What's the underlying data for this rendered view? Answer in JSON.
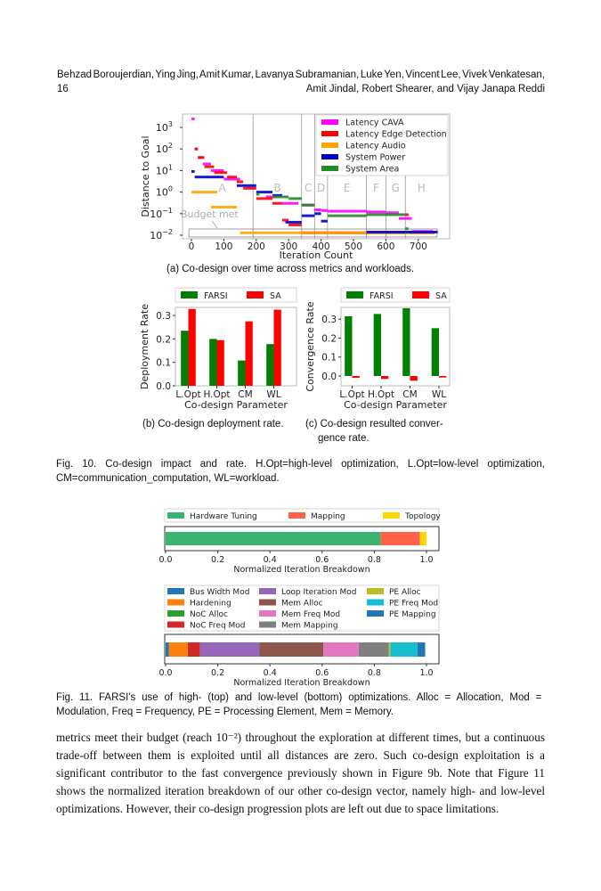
{
  "header": {
    "line1": "Behzad Boroujerdian, Ying Jing, Amit Kumar, Lavanya Subramanian, Luke Yen, Vincent Lee, Vivek Venkatesan,",
    "page_number": "16",
    "line2": "Amit Jindal, Robert Shearer, and Vijay Janapa Reddi"
  },
  "captions": {
    "a": "(a) Co-design over time across metrics and workloads.",
    "b": "(b) Co-design deployment rate.",
    "c_line1": "(c)  Co-design  resulted  conver-",
    "c_line2": "gence rate.",
    "fig10_line1": "Fig. 10. Co-design impact and rate. H.Opt=high-level optimization, L.Opt=low-level optimization,",
    "fig10_line2": "CM=communication_computation, WL=workload.",
    "fig11_line1": "Fig. 11.  FARSI's use of high- (top) and low-level (bottom) optimizations. Alloc = Allocation, Mod =",
    "fig11_line2": "Modulation, Freq = Frequency, PE = Processing Element, Mem = Memory."
  },
  "body": [
    "metrics meet their budget (reach 10⁻²) throughout the exploration at different times, but a continuous",
    "trade-off between them is exploited until all distances are zero. Such co-design exploitation is a",
    "significant contributor to the fast convergence previously shown in Figure 9b. Note that Figure 11",
    "shows the normalized iteration breakdown of our other co-design vector, namely high- and low-level",
    "optimizations. However, their co-design progression plots are left out due to space limitations."
  ],
  "chart_data": [
    {
      "type": "scatter",
      "title": "",
      "xlabel": "Iteration Count",
      "ylabel": "Distance to Goal",
      "xlim": [
        -20,
        780
      ],
      "ylim": [
        0.007,
        6000
      ],
      "yscale": "log",
      "xticks": [
        0,
        100,
        200,
        300,
        400,
        500,
        600,
        700
      ],
      "yticks_exp": [
        3,
        2,
        1,
        0,
        -1,
        -2
      ],
      "legend_position": "top-right",
      "phase_boundaries": [
        190,
        340,
        380,
        420,
        540,
        600,
        660
      ],
      "phases": [
        {
          "label": "A",
          "x": 95
        },
        {
          "label": "B",
          "x": 265
        },
        {
          "label": "C",
          "x": 360
        },
        {
          "label": "D",
          "x": 400
        },
        {
          "label": "E",
          "x": 480
        },
        {
          "label": "F",
          "x": 570
        },
        {
          "label": "G",
          "x": 630
        },
        {
          "label": "H",
          "x": 710
        }
      ],
      "annotation": "Budget met",
      "series": [
        {
          "name": "Latency CAVA",
          "color": "#ff00ff",
          "segments": [
            [
              0,
              10,
              2500
            ],
            [
              10,
              20,
              100
            ],
            [
              20,
              35,
              40
            ],
            [
              35,
              60,
              20
            ],
            [
              60,
              100,
              10
            ],
            [
              100,
              150,
              4
            ],
            [
              230,
              260,
              0.6
            ],
            [
              280,
              330,
              0.3
            ],
            [
              340,
              380,
              0.25
            ],
            [
              380,
              400,
              0.15
            ],
            [
              400,
              420,
              0.14
            ],
            [
              420,
              540,
              0.13
            ],
            [
              540,
              600,
              0.12
            ],
            [
              600,
              640,
              0.11
            ],
            [
              640,
              680,
              0.06
            ],
            [
              680,
              745,
              0.015
            ]
          ]
        },
        {
          "name": "Latency Edge Detection",
          "color": "#ff0000",
          "segments": [
            [
              10,
              20,
              100
            ],
            [
              20,
              40,
              40
            ],
            [
              40,
              70,
              15
            ],
            [
              70,
              110,
              8
            ],
            [
              110,
              140,
              5
            ],
            [
              140,
              160,
              3
            ],
            [
              160,
              200,
              1.5
            ],
            [
              200,
              250,
              0.5
            ],
            [
              250,
              280,
              0.3
            ],
            [
              280,
              300,
              0.05
            ],
            [
              300,
              340,
              0.03
            ],
            [
              340,
              660,
              0.013
            ],
            [
              660,
              670,
              0.09
            ],
            [
              670,
              750,
              0.013
            ]
          ]
        },
        {
          "name": "Latency Audio",
          "color": "#ffa500",
          "segments": [
            [
              0,
              80,
              1
            ],
            [
              60,
              140,
              0.2
            ],
            [
              150,
              750,
              0.013
            ]
          ]
        },
        {
          "name": "System Power",
          "color": "#0000cd",
          "segments": [
            [
              0,
              10,
              9
            ],
            [
              10,
              100,
              5
            ],
            [
              140,
              200,
              2
            ],
            [
              200,
              250,
              1
            ],
            [
              250,
              280,
              0.7
            ],
            [
              290,
              340,
              0.04
            ],
            [
              340,
              380,
              0.08
            ],
            [
              380,
              400,
              0.1
            ],
            [
              400,
              420,
              0.045
            ],
            [
              540,
              660,
              0.014
            ],
            [
              660,
              760,
              0.014
            ]
          ]
        },
        {
          "name": "System Area",
          "color": "#228b22",
          "segments": [
            [
              200,
              210,
              0.8
            ],
            [
              250,
              300,
              0.6
            ],
            [
              300,
              340,
              0.5
            ],
            [
              340,
              380,
              0.25
            ],
            [
              420,
              540,
              0.08
            ],
            [
              540,
              660,
              0.09
            ],
            [
              660,
              670,
              0.02
            ]
          ]
        }
      ]
    },
    {
      "type": "bar",
      "xlabel": "Co-design Parameter",
      "ylabel": "Deployment Rate",
      "categories": [
        "L.Opt",
        "H.Opt",
        "CM",
        "WL"
      ],
      "ylim": [
        0,
        0.34
      ],
      "yticks": [
        "0.0",
        "0.1",
        "0.2",
        "0.3"
      ],
      "legend_position": "top",
      "series": [
        {
          "name": "FARSI",
          "color": "#008000",
          "values": [
            0.235,
            0.2,
            0.108,
            0.178
          ]
        },
        {
          "name": "SA",
          "color": "#ff0000",
          "values": [
            0.328,
            0.195,
            0.275,
            0.325
          ]
        }
      ]
    },
    {
      "type": "bar",
      "xlabel": "Co-design Parameter",
      "ylabel": "Convergence Rate",
      "categories": [
        "L.Opt",
        "H.Opt",
        "CM",
        "WL"
      ],
      "ylim": [
        -0.05,
        0.38
      ],
      "yticks": [
        "0.0",
        "0.1",
        "0.2",
        "0.3"
      ],
      "legend_position": "top",
      "series": [
        {
          "name": "FARSI",
          "color": "#008000",
          "values": [
            0.315,
            0.327,
            0.357,
            0.252
          ]
        },
        {
          "name": "SA",
          "color": "#ff0000",
          "values": [
            -0.01,
            -0.015,
            -0.025,
            -0.008
          ]
        }
      ]
    },
    {
      "type": "bar",
      "orientation": "horizontal-stacked",
      "xlabel": "Normalized Iteration Breakdown",
      "xlim": [
        0,
        1.05
      ],
      "xticks": [
        "0.0",
        "0.2",
        "0.4",
        "0.6",
        "0.8",
        "1.0"
      ],
      "legend_position": "top",
      "series": [
        {
          "name": "Hardware Tuning",
          "color": "#3cb371",
          "value": 0.825
        },
        {
          "name": "Mapping",
          "color": "#ff6347",
          "value": 0.15
        },
        {
          "name": "Topology",
          "color": "#ffd700",
          "value": 0.025
        }
      ]
    },
    {
      "type": "bar",
      "orientation": "horizontal-stacked",
      "xlabel": "Normalized Iteration Breakdown",
      "xlim": [
        0,
        1.05
      ],
      "xticks": [
        "0.0",
        "0.2",
        "0.4",
        "0.6",
        "0.8",
        "1.0"
      ],
      "legend_position": "top",
      "series": [
        {
          "name": "Bus Width Mod",
          "color": "#1f77b4",
          "value": 0.012
        },
        {
          "name": "Hardening",
          "color": "#ff7f0e",
          "value": 0.073
        },
        {
          "name": "NoC Alloc",
          "color": "#2ca02c",
          "value": 0.001
        },
        {
          "name": "NoC Freq Mod",
          "color": "#d62728",
          "value": 0.046
        },
        {
          "name": "Loop Iteration Mod",
          "color": "#9467bd",
          "value": 0.228
        },
        {
          "name": "Mem Alloc",
          "color": "#8c564b",
          "value": 0.245
        },
        {
          "name": "Mem Freq Mod",
          "color": "#e377c2",
          "value": 0.135
        },
        {
          "name": "Mem Mapping",
          "color": "#7f7f7f",
          "value": 0.115
        },
        {
          "name": "PE Alloc",
          "color": "#bcbd22",
          "value": 0.006
        },
        {
          "name": "PE Freq Mod",
          "color": "#17becf",
          "value": 0.104
        },
        {
          "name": "PE Mapping",
          "color": "#1f77b4",
          "value": 0.03
        }
      ]
    }
  ]
}
